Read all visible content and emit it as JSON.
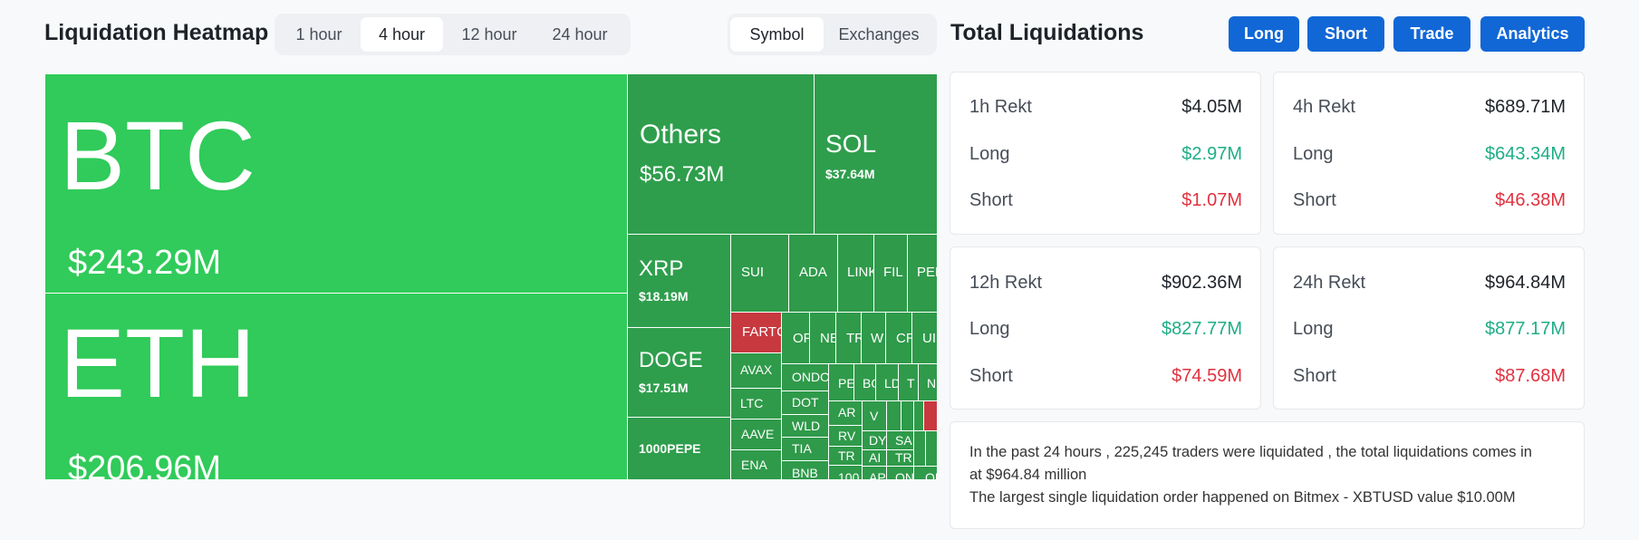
{
  "heatmap": {
    "title": "Liquidation Heatmap",
    "periods": [
      "1 hour",
      "4 hour",
      "12 hour",
      "24 hour"
    ],
    "active_period": "4 hour",
    "views": [
      "Symbol",
      "Exchanges"
    ],
    "active_view": "Symbol",
    "tiles": {
      "btc": {
        "name": "BTC",
        "value": "$243.29M"
      },
      "eth": {
        "name": "ETH",
        "value": "$206.96M"
      },
      "others": {
        "name": "Others",
        "value": "$56.73M"
      },
      "sol": {
        "name": "SOL",
        "value": "$37.64M"
      },
      "xrp": {
        "name": "XRP",
        "value": "$18.19M"
      },
      "doge": {
        "name": "DOGE",
        "value": "$17.51M"
      },
      "pepe1000": {
        "name": "1000PEPE"
      },
      "sui": {
        "name": "SUI"
      },
      "ada": {
        "name": "ADA"
      },
      "link": {
        "name": "LINK"
      },
      "fil": {
        "name": "FIL"
      },
      "pengu": {
        "name": "PEN"
      },
      "fartcoin": {
        "name": "FARTC"
      },
      "op": {
        "name": "OP"
      },
      "near": {
        "name": "NE"
      },
      "trump": {
        "name": "TR"
      },
      "wif": {
        "name": "W"
      },
      "crv": {
        "name": "CR"
      },
      "uni": {
        "name": "UI"
      },
      "avax": {
        "name": "AVAX"
      },
      "ondo": {
        "name": "ONDO"
      },
      "pe2": {
        "name": "PE"
      },
      "bo": {
        "name": "BO"
      },
      "ldo": {
        "name": "LD"
      },
      "t1": {
        "name": "T"
      },
      "n1": {
        "name": "N"
      },
      "ltc": {
        "name": "LTC"
      },
      "dot": {
        "name": "DOT"
      },
      "ar": {
        "name": "AR"
      },
      "v1": {
        "name": "V"
      },
      "wld": {
        "name": "WLD"
      },
      "rv": {
        "name": "RV"
      },
      "dy": {
        "name": "DY"
      },
      "sa": {
        "name": "SA"
      },
      "aave": {
        "name": "AAVE"
      },
      "tia": {
        "name": "TIA"
      },
      "tr2": {
        "name": "TR"
      },
      "ai": {
        "name": "AI"
      },
      "tr3": {
        "name": "TR"
      },
      "ena": {
        "name": "ENA"
      },
      "bnb": {
        "name": "BNB"
      },
      "c100": {
        "name": "100"
      },
      "ap": {
        "name": "AP"
      },
      "on": {
        "name": "ON"
      },
      "op2": {
        "name": "OP"
      }
    }
  },
  "totals": {
    "title": "Total Liquidations",
    "buttons": [
      "Long",
      "Short",
      "Trade",
      "Analytics"
    ],
    "cards": [
      {
        "period": "1h Rekt",
        "total": "$4.05M",
        "long_label": "Long",
        "long": "$2.97M",
        "short_label": "Short",
        "short": "$1.07M"
      },
      {
        "period": "4h Rekt",
        "total": "$689.71M",
        "long_label": "Long",
        "long": "$643.34M",
        "short_label": "Short",
        "short": "$46.38M"
      },
      {
        "period": "12h Rekt",
        "total": "$902.36M",
        "long_label": "Long",
        "long": "$827.77M",
        "short_label": "Short",
        "short": "$74.59M"
      },
      {
        "period": "24h Rekt",
        "total": "$964.84M",
        "long_label": "Long",
        "long": "$877.17M",
        "short_label": "Short",
        "short": "$87.68M"
      }
    ],
    "summary": [
      "In the past 24 hours , 225,245 traders were liquidated , the total liquidations comes in",
      "at $964.84 million",
      "The largest single liquidation order happened on Bitmex - XBTUSD value $10.00M"
    ]
  },
  "colors": {
    "accent_button": "#1167d6",
    "long_green": "#1eae86",
    "short_red": "#e0323f",
    "tile_green_bright": "#30cb5a",
    "tile_green_dark": "#2e9e4c",
    "tile_red": "#c7393f"
  }
}
